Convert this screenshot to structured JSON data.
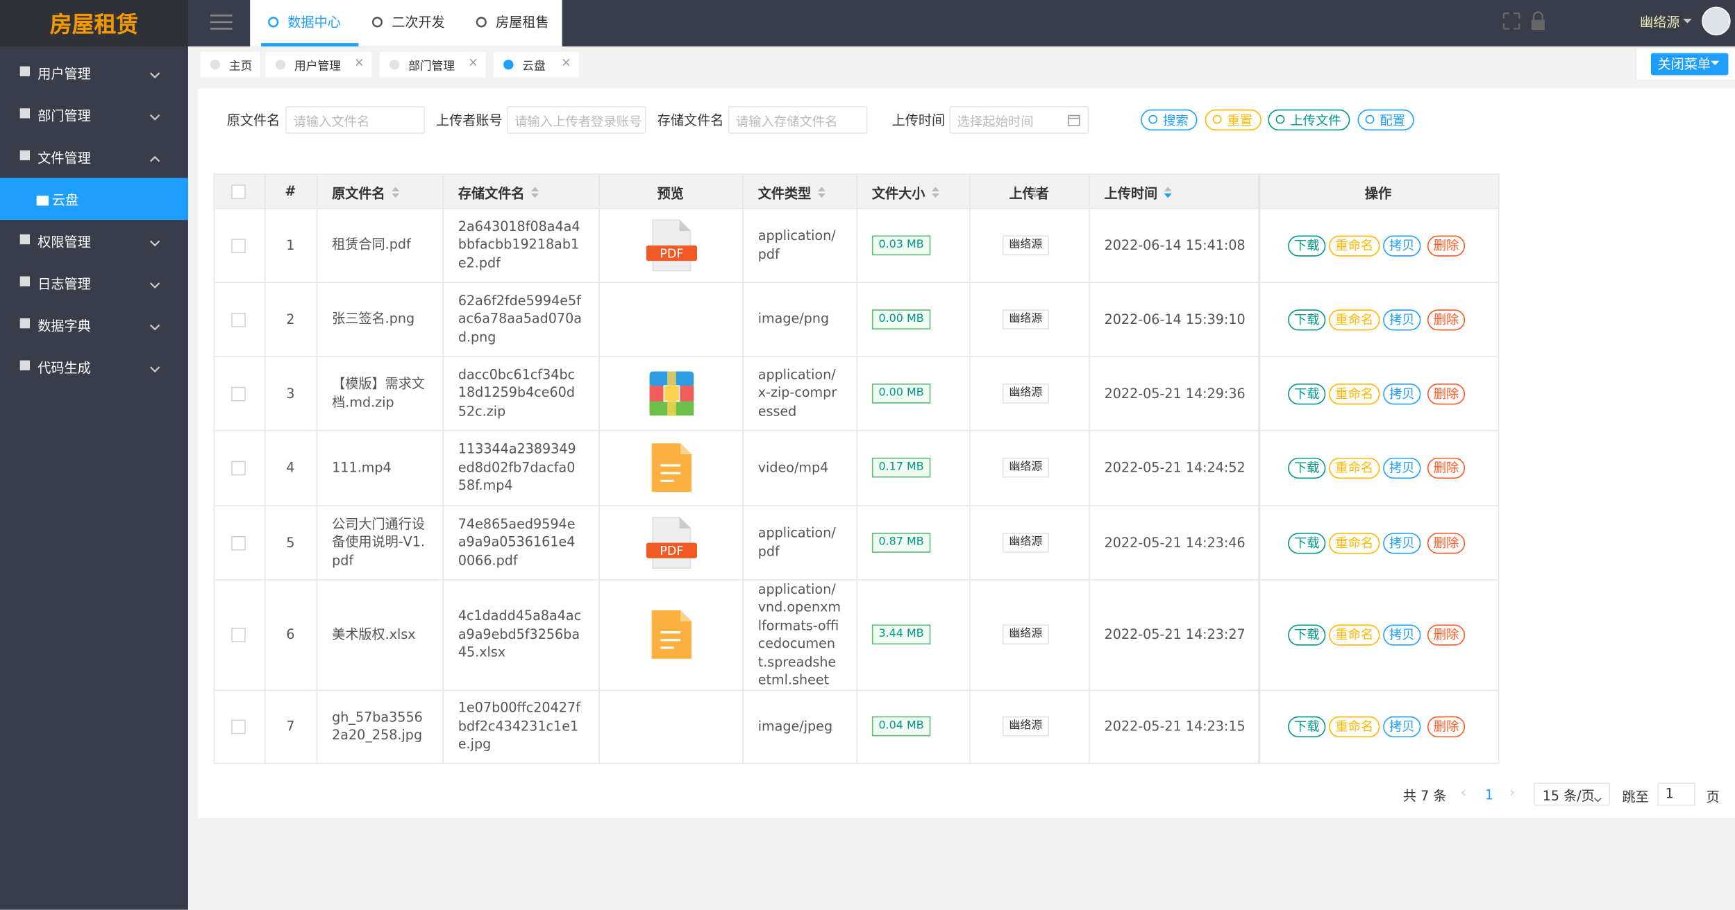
{
  "header": {
    "logo": "房屋租赁",
    "top_tabs": [
      "数据中心",
      "二次开发",
      "房屋租售"
    ],
    "user": "幽络源"
  },
  "sidebar": {
    "items": [
      {
        "label": "用户管理"
      },
      {
        "label": "部门管理"
      },
      {
        "label": "文件管理",
        "children": [
          "云盘"
        ]
      },
      {
        "label": "权限管理"
      },
      {
        "label": "日志管理"
      },
      {
        "label": "数据字典"
      },
      {
        "label": "代码生成"
      }
    ]
  },
  "tabs": {
    "items": [
      "主页",
      "用户管理",
      "部门管理",
      "云盘"
    ],
    "close_menu": "关闭菜单"
  },
  "search": {
    "fields": [
      {
        "label": "原文件名",
        "placeholder": "请输入文件名"
      },
      {
        "label": "上传者账号",
        "placeholder": "请输入上传者登录账号"
      },
      {
        "label": "存储文件名",
        "placeholder": "请输入存储文件名"
      },
      {
        "label": "上传时间",
        "placeholder": "选择起始时间"
      }
    ],
    "buttons": [
      "搜索",
      "重置",
      "上传文件",
      "配置"
    ]
  },
  "table": {
    "columns": [
      "#",
      "原文件名",
      "存储文件名",
      "预览",
      "文件类型",
      "文件大小",
      "上传者",
      "上传时间",
      "操作"
    ],
    "pdf_icon_text": "PDF",
    "actions": [
      "下载",
      "重命名",
      "拷贝",
      "删除"
    ],
    "rows": [
      {
        "index": 1,
        "name": "租赁合同.pdf",
        "stored": "2a643018f08a4a4bbfacbb19218ab1e2.pdf",
        "icon": "pdf",
        "type": "application/pdf",
        "size": "0.03 MB",
        "uploader": "幽络源",
        "time": "2022-06-14 15:41:08"
      },
      {
        "index": 2,
        "name": "张三签名.png",
        "stored": "62a6f2fde5994e5fac6a78aa5ad070ad.png",
        "icon": null,
        "type": "image/png",
        "size": "0.00 MB",
        "uploader": "幽络源",
        "time": "2022-06-14 15:39:10"
      },
      {
        "index": 3,
        "name": "【模版】需求文档.md.zip",
        "stored": "dacc0bc61cf34bc18d1259b4ce60d52c.zip",
        "icon": "zip",
        "type": "application/x-zip-compressed",
        "size": "0.00 MB",
        "uploader": "幽络源",
        "time": "2022-05-21 14:29:36"
      },
      {
        "index": 4,
        "name": "111.mp4",
        "stored": "113344a2389349ed8d02fb7dacfa058f.mp4",
        "icon": "file",
        "type": "video/mp4",
        "size": "0.17 MB",
        "uploader": "幽络源",
        "time": "2022-05-21 14:24:52"
      },
      {
        "index": 5,
        "name": "公司大门通行设备使用说明-V1.pdf",
        "stored": "74e865aed9594ea9a9a0536161e40066.pdf",
        "icon": "pdf",
        "type": "application/pdf",
        "size": "0.87 MB",
        "uploader": "幽络源",
        "time": "2022-05-21 14:23:46"
      },
      {
        "index": 6,
        "name": "美术版权.xlsx",
        "stored": "4c1dadd45a8a4aca9a9ebd5f3256ba45.xlsx",
        "icon": "file",
        "type": "application/vnd.openxmlformats-officedocument.spreadsheetml.sheet",
        "size": "3.44 MB",
        "uploader": "幽络源",
        "time": "2022-05-21 14:23:27"
      },
      {
        "index": 7,
        "name": "gh_57ba35562a20_258.jpg",
        "stored": "1e07b00ffc20427fbdf2c434231c1e1e.jpg",
        "icon": null,
        "type": "image/jpeg",
        "size": "0.04 MB",
        "uploader": "幽络源",
        "time": "2022-05-21 14:23:15"
      }
    ]
  },
  "pagination": {
    "total": "共 7 条",
    "page": "1",
    "page_size": "15 条/页",
    "jump": "跳至",
    "jump_value": "1",
    "page_unit": "页"
  }
}
